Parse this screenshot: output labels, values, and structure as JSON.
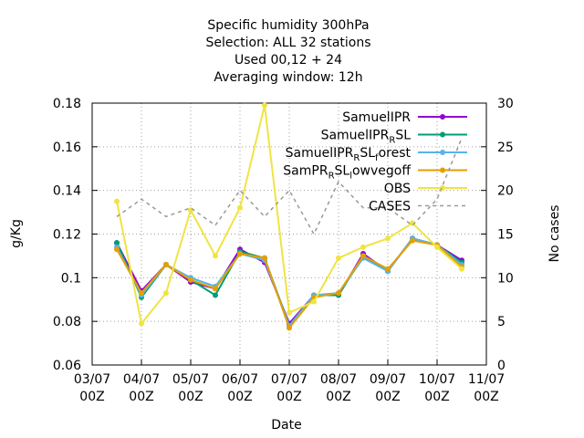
{
  "chart_data": {
    "type": "line",
    "title": [
      "Specific humidity 300hPa",
      "Selection: ALL      32 stations",
      "Used  00,12  + 24",
      "Averaging window: 12h"
    ],
    "xlabel": "Date",
    "ylabel": "g/Kg",
    "y2label": "No cases",
    "x": [
      3.5,
      4,
      4.5,
      5,
      5.5,
      6,
      6.5,
      7,
      7.5,
      8,
      8.5,
      9,
      9.5,
      10,
      10.5
    ],
    "xlim": [
      3,
      11
    ],
    "xticks": [
      {
        "value": 3,
        "label": "03/07\n00Z"
      },
      {
        "value": 4,
        "label": "04/07\n00Z"
      },
      {
        "value": 5,
        "label": "05/07\n00Z"
      },
      {
        "value": 6,
        "label": "06/07\n00Z"
      },
      {
        "value": 7,
        "label": "07/07\n00Z"
      },
      {
        "value": 8,
        "label": "08/07\n00Z"
      },
      {
        "value": 9,
        "label": "09/07\n00Z"
      },
      {
        "value": 10,
        "label": "10/07\n00Z"
      },
      {
        "value": 11,
        "label": "11/07\n00Z"
      }
    ],
    "ylim": [
      0.06,
      0.18
    ],
    "yticks": [
      0.06,
      0.08,
      0.1,
      0.12,
      0.14,
      0.16,
      0.18
    ],
    "y2lim": [
      0,
      30
    ],
    "y2ticks": [
      0,
      5,
      10,
      15,
      20,
      25,
      30
    ],
    "grid": true,
    "legend": "top right",
    "series": [
      {
        "name": "SamuelIPR",
        "color": "#9400d3",
        "values": [
          0.116,
          0.094,
          0.106,
          0.098,
          0.095,
          0.113,
          0.107,
          0.079,
          0.092,
          0.092,
          0.111,
          0.103,
          0.118,
          0.115,
          0.108
        ]
      },
      {
        "name": "SamuelIPR_RSL",
        "color": "#009e73",
        "values": [
          0.116,
          0.091,
          0.106,
          0.099,
          0.092,
          0.112,
          0.109,
          0.078,
          0.092,
          0.092,
          0.11,
          0.103,
          0.118,
          0.115,
          0.107
        ]
      },
      {
        "name": "SamuelIPR_RSL_forest",
        "color": "#56b4e9",
        "values": [
          0.114,
          0.092,
          0.106,
          0.1,
          0.096,
          0.111,
          0.108,
          0.078,
          0.092,
          0.093,
          0.109,
          0.103,
          0.118,
          0.115,
          0.106
        ]
      },
      {
        "name": "SamPR_RSL_lowvegoff",
        "color": "#e69f00",
        "values": [
          0.113,
          0.093,
          0.106,
          0.099,
          0.095,
          0.111,
          0.109,
          0.077,
          0.091,
          0.093,
          0.11,
          0.104,
          0.117,
          0.115,
          0.105
        ]
      },
      {
        "name": "OBS",
        "color": "#f0e442",
        "values": [
          0.135,
          0.079,
          0.093,
          0.131,
          0.11,
          0.132,
          0.179,
          0.084,
          0.089,
          0.109,
          0.114,
          0.118,
          0.125,
          0.114,
          0.104
        ]
      },
      {
        "name": "CASES",
        "color": "#999999",
        "axis": "y2",
        "dashed": true,
        "values": [
          17,
          19,
          17,
          18,
          16,
          20,
          17,
          20,
          15,
          21,
          18,
          18,
          16,
          19,
          26
        ]
      }
    ]
  }
}
